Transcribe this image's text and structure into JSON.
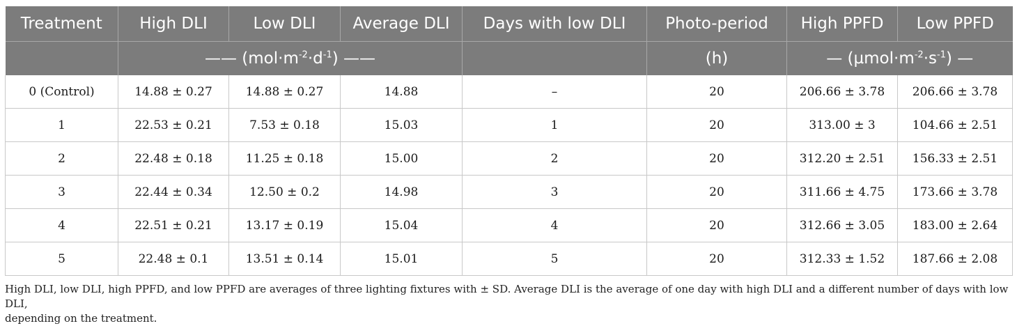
{
  "table": {
    "headers": [
      "Treatment",
      "High DLI",
      "Low DLI",
      "Average DLI",
      "Days with low DLI",
      "Photo-period",
      "High PPFD",
      "Low PPFD"
    ],
    "units": {
      "dli": {
        "pre": "—— (mol·m",
        "exp1": "-2",
        "mid": "·d",
        "exp2": "-1",
        "post": ") ——"
      },
      "days": "",
      "photoperiod": "(h)",
      "ppfd": {
        "pre": "— (µmol·m",
        "exp1": "-2",
        "mid": "·s",
        "exp2": "-1",
        "post": ") —"
      }
    },
    "rows": [
      [
        "0 (Control)",
        "14.88 ± 0.27",
        "14.88 ± 0.27",
        "14.88",
        "–",
        "20",
        "206.66 ± 3.78",
        "206.66 ± 3.78"
      ],
      [
        "1",
        "22.53 ± 0.21",
        "7.53 ± 0.18",
        "15.03",
        "1",
        "20",
        "313.00 ± 3",
        "104.66 ± 2.51"
      ],
      [
        "2",
        "22.48 ± 0.18",
        "11.25 ± 0.18",
        "15.00",
        "2",
        "20",
        "312.20 ± 2.51",
        "156.33 ± 2.51"
      ],
      [
        "3",
        "22.44 ± 0.34",
        "12.50 ± 0.2",
        "14.98",
        "3",
        "20",
        "311.66 ± 4.75",
        "173.66 ± 3.78"
      ],
      [
        "4",
        "22.51 ± 0.21",
        "13.17 ± 0.19",
        "15.04",
        "4",
        "20",
        "312.66 ± 3.05",
        "183.00 ± 2.64"
      ],
      [
        "5",
        "22.48 ± 0.1",
        "13.51 ± 0.14",
        "15.01",
        "5",
        "20",
        "312.33 ± 1.52",
        "187.66 ± 2.08"
      ]
    ]
  },
  "footnote": {
    "line1": "High DLI, low DLI, high PPFD, and low PPFD are averages of three lighting fixtures with ± SD. Average DLI is the average of one day with high DLI and a different number of days with low DLI,",
    "line2": "depending on the treatment."
  },
  "colors": {
    "header_bg": "#7c7c7c",
    "header_text": "#ffffff",
    "grid": "#c8c8c8"
  }
}
